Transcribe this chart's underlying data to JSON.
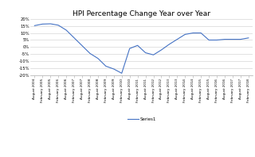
{
  "title": "HPI Percentage Change Year over Year",
  "legend_label": "Series1",
  "line_color": "#4472C4",
  "background_color": "#ffffff",
  "ylim": [
    -0.2,
    0.2
  ],
  "yticks": [
    -0.2,
    -0.15,
    -0.1,
    -0.05,
    0.0,
    0.05,
    0.1,
    0.15,
    0.2
  ],
  "ytick_labels": [
    "-20%",
    "-15%",
    "-10%",
    "-5%",
    "0%",
    "5%",
    "10%",
    "15%",
    "20%"
  ],
  "x_labels": [
    "August 2004",
    "February 2005",
    "August 2005",
    "February 2006",
    "August 2006",
    "February 2007",
    "August 2007",
    "February 2008",
    "August 2008",
    "February 2009",
    "August 2009",
    "February 2010",
    "August 2010",
    "February 2011",
    "August 2011",
    "February 2012",
    "August 2012",
    "February 2013",
    "August 2013",
    "February 2014",
    "August 2014",
    "February 2015",
    "August 2015",
    "February 2016",
    "August 2016",
    "February 2017",
    "August 2017",
    "February 2018"
  ],
  "values": [
    0.152,
    0.163,
    0.165,
    0.155,
    0.12,
    0.065,
    0.01,
    -0.045,
    -0.08,
    -0.135,
    -0.155,
    -0.185,
    -0.01,
    0.012,
    -0.04,
    -0.055,
    -0.02,
    0.02,
    0.055,
    0.09,
    0.1,
    0.1,
    0.05,
    0.05,
    0.055,
    0.055,
    0.055,
    0.065
  ],
  "figsize": [
    3.2,
    1.98
  ],
  "dpi": 100
}
